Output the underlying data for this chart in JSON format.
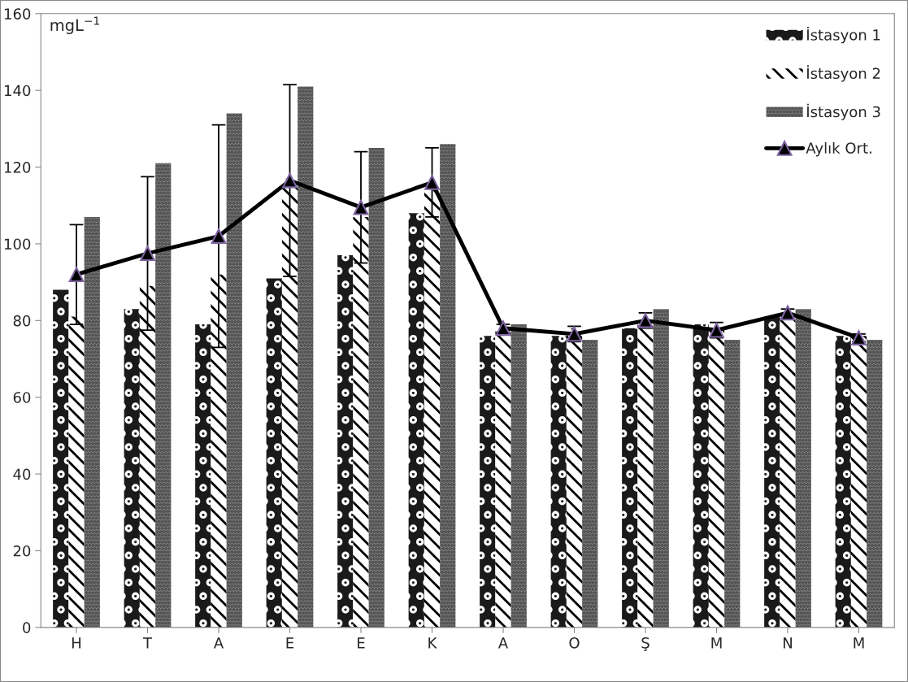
{
  "chart_data": {
    "type": "bar",
    "ylabel": "mgL$^{−1}$",
    "categories": [
      "H",
      "T",
      "A",
      "E",
      "E",
      "K",
      "A",
      "O",
      "Ş",
      "M",
      "N",
      "M"
    ],
    "series": [
      {
        "name": "İstasyon 1",
        "color": "#1a1a1a",
        "values": [
          88,
          83,
          79,
          91,
          97,
          108,
          76,
          76,
          78,
          79,
          81,
          76
        ]
      },
      {
        "name": "İstasyon 2",
        "color": "#ffffff",
        "values": [
          81,
          89,
          92,
          117,
          107,
          114,
          79,
          78,
          79,
          78,
          82,
          76
        ]
      },
      {
        "name": "İstasyon 3",
        "color": "#a6a6a6",
        "values": [
          107,
          121,
          134,
          141,
          125,
          126,
          79,
          75,
          83,
          75,
          83,
          75
        ]
      },
      {
        "name": "Aylık Ort.",
        "type": "line",
        "color": "#000000",
        "marker": "triangle",
        "values": [
          92,
          97.5,
          102,
          116.5,
          109.5,
          116,
          78,
          76.5,
          80,
          77.5,
          82,
          75.5
        ],
        "errors": [
          13,
          20,
          29,
          25,
          14.5,
          9,
          1,
          2,
          2,
          2,
          1,
          1
        ]
      }
    ],
    "ylim": [
      0,
      160
    ],
    "yticks": [
      0,
      20,
      40,
      60,
      80,
      100,
      120,
      140,
      160
    ],
    "grid": false,
    "legend": "top right"
  }
}
